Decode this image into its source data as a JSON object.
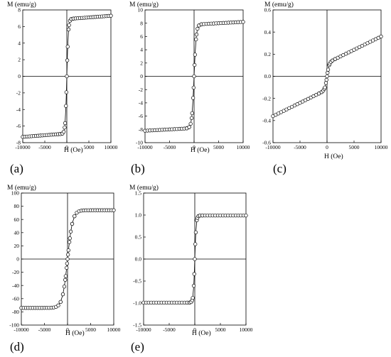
{
  "chart_data": [
    {
      "type": "scatter",
      "panel": "(a)",
      "xlabel": "H (Oe)",
      "ylabel": "M (emu/g)",
      "xlim": [
        -10000,
        10000
      ],
      "ylim": [
        -8,
        8
      ],
      "xticks": [
        "-10000",
        "-5000",
        "0",
        "5000",
        "10000"
      ],
      "yticks": [
        "-8",
        "-6",
        "-4",
        "-2",
        "0",
        "2",
        "4",
        "6",
        "8"
      ],
      "model": {
        "ms": 6.9,
        "h0": 350,
        "chi": 4e-05
      },
      "series": [
        {
          "values": "loop"
        }
      ],
      "grid": false
    },
    {
      "type": "scatter",
      "panel": "(b)",
      "xlabel": "H (Oe)",
      "ylabel": "M (emu/g)",
      "xlim": [
        -10000,
        10000
      ],
      "ylim": [
        -10,
        10
      ],
      "xticks": [
        "-10000",
        "-5000",
        "0",
        "5000",
        "10000"
      ],
      "yticks": [
        "-10",
        "-8",
        "-6",
        "-4",
        "-2",
        "0",
        "2",
        "4",
        "6",
        "8",
        "10"
      ],
      "model": {
        "ms": 7.8,
        "h0": 450,
        "chi": 4e-05
      },
      "series": [
        {
          "values": "loop"
        }
      ],
      "grid": false
    },
    {
      "type": "scatter",
      "panel": "(c)",
      "xlabel": "H (Oe)",
      "ylabel": "M (emu/g)",
      "xlim": [
        -10000,
        10000
      ],
      "ylim": [
        -0.6,
        0.6
      ],
      "xticks": [
        "-10000",
        "-5000",
        "0",
        "5000",
        "10000"
      ],
      "yticks": [
        "-0.6",
        "-0.4",
        "-0.2",
        "0.0",
        "0.2",
        "0.4",
        "0.6"
      ],
      "model": {
        "ms": 0.12,
        "h0": 400,
        "chi": 2.4e-05
      },
      "series": [
        {
          "values": "loop"
        }
      ],
      "grid": false
    },
    {
      "type": "scatter",
      "panel": "(d)",
      "xlabel": "H (Oe)",
      "ylabel": "M (emu/g)",
      "xlim": [
        -10000,
        10000
      ],
      "ylim": [
        -100,
        100
      ],
      "xticks": [
        "-10000",
        "-5000",
        "0",
        "5000",
        "10000"
      ],
      "yticks": [
        "-100",
        "-80",
        "-60",
        "-40",
        "-20",
        "0",
        "20",
        "40",
        "60",
        "80",
        "100"
      ],
      "model": {
        "ms": 74,
        "h0": 1100,
        "chi": 0.0
      },
      "series": [
        {
          "values": "loop"
        }
      ],
      "grid": false
    },
    {
      "type": "scatter",
      "panel": "(e)",
      "xlabel": "H (Oe)",
      "ylabel": "M (emu/g)",
      "xlim": [
        -10000,
        10000
      ],
      "ylim": [
        -1.5,
        1.5
      ],
      "xticks": [
        "-10000",
        "-5000",
        "0",
        "5000",
        "10000"
      ],
      "yticks": [
        "-1.5",
        "-1.0",
        "-0.5",
        "0.0",
        "0.5",
        "1.0",
        "1.5"
      ],
      "model": {
        "ms": 0.99,
        "h0": 280,
        "chi": 0.0
      },
      "series": [
        {
          "values": "loop"
        }
      ],
      "grid": false
    }
  ]
}
